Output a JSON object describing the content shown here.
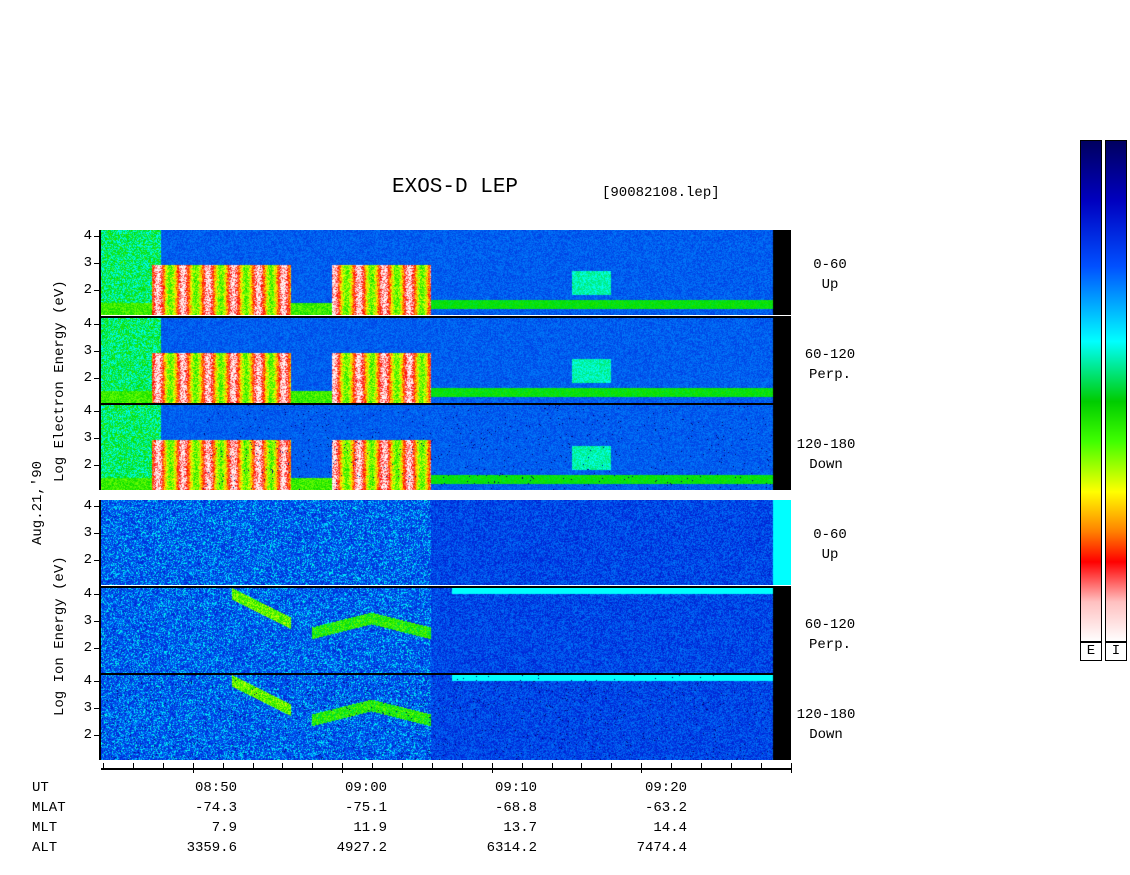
{
  "chart_data": {
    "type": "heatmap",
    "title": "EXOS-D LEP",
    "file": "[90082108.lep]",
    "date_label": "Aug.21,'90",
    "electron_ylabel": "Log  Electron  Energy (eV)",
    "ion_ylabel": "Log  Ion  Energy (eV)",
    "y_ticks": [
      "4",
      "3",
      "2"
    ],
    "ylim": [
      1,
      4
    ],
    "pitch_labels": [
      {
        "range": "0-60",
        "dir": "Up"
      },
      {
        "range": "60-120",
        "dir": "Perp."
      },
      {
        "range": "120-180",
        "dir": "Down"
      }
    ],
    "x_axis": {
      "rows": [
        {
          "name": "UT",
          "values": [
            "08:50",
            "09:00",
            "09:10",
            "09:20"
          ]
        },
        {
          "name": "MLAT",
          "values": [
            "-74.3",
            "-75.1",
            "-68.8",
            "-63.2"
          ]
        },
        {
          "name": "MLT",
          "values": [
            "7.9",
            "11.9",
            "13.7",
            "14.4"
          ]
        },
        {
          "name": "ALT",
          "values": [
            "3359.6",
            "4927.2",
            "6314.2",
            "7474.4"
          ]
        }
      ]
    },
    "colorbar_labels": [
      "E",
      "I"
    ],
    "colors": [
      "#ffffff",
      "#ff0000",
      "#ffff00",
      "#00cc00",
      "#00ffff",
      "#0000cc",
      "#000080"
    ]
  }
}
